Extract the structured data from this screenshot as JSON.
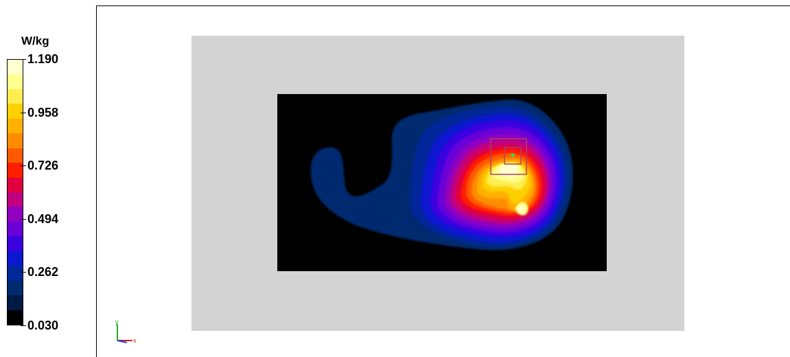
{
  "legend": {
    "unit": "W/kg",
    "ticks": [
      "1.190",
      "0.958",
      "0.726",
      "0.494",
      "0.262",
      "0.030"
    ],
    "tick_values": [
      1.19,
      0.958,
      0.726,
      0.494,
      0.262,
      0.03
    ],
    "colors_top_to_bottom": [
      "#ffffd0",
      "#ffff90",
      "#ffee50",
      "#ffd000",
      "#ffb000",
      "#ff8c00",
      "#ff5a00",
      "#ff1e00",
      "#e00040",
      "#c00080",
      "#9000c0",
      "#6a00d8",
      "#3a00e0",
      "#0a18d0",
      "#00289a",
      "#002a70",
      "#001a44",
      "#000000"
    ]
  },
  "chart_data": {
    "type": "heatmap",
    "title": "",
    "xlabel": "",
    "ylabel": "",
    "colorbar": {
      "label": "W/kg",
      "min": 0.03,
      "max": 1.19,
      "tick_labels": [
        "1.190",
        "0.958",
        "0.726",
        "0.494",
        "0.262",
        "0.030"
      ]
    },
    "peak_value_approx": 1.19,
    "background_value": 0.03,
    "annotation_markers": [
      "peak-search-box-outer",
      "peak-search-box-inner",
      "peak-point"
    ]
  },
  "axes_triad": {
    "x_label": "x",
    "y_label": "y"
  },
  "colors": {
    "phantom": "#d3d3d3",
    "scan_area": "#000000",
    "marker_box": "#b04060",
    "peak_marker": "#30e060"
  }
}
